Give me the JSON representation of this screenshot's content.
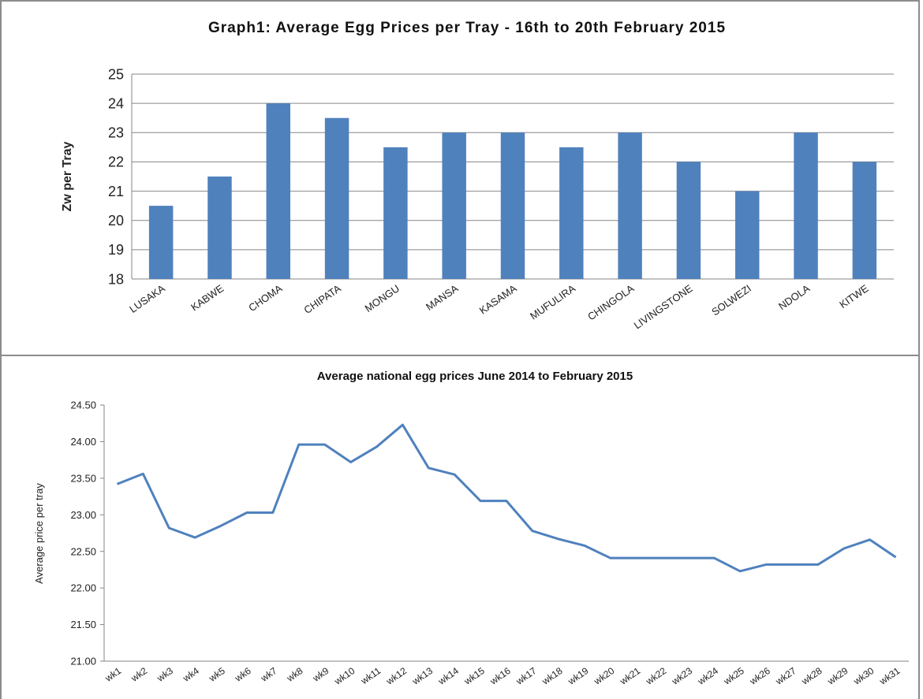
{
  "chart_data": [
    {
      "type": "bar",
      "title": "Graph1: Average Egg Prices per Tray -   16th to 20th February 2015",
      "y_label": "Zw per Tray",
      "categories": [
        "LUSAKA",
        "KABWE",
        "CHOMA",
        "CHIPATA",
        "MONGU",
        "MANSA",
        "KASAMA",
        "MUFULIRA",
        "CHINGOLA",
        "LIVINGSTONE",
        "SOLWEZI",
        "NDOLA",
        "KITWE"
      ],
      "values": [
        20.5,
        21.5,
        24,
        23.5,
        22.5,
        23,
        23,
        22.5,
        23,
        22,
        21,
        23,
        22
      ],
      "color": "#4f81bd",
      "ylim": [
        18,
        25
      ],
      "yticks": [
        18,
        19,
        20,
        21,
        22,
        23,
        24,
        25
      ],
      "grid": true
    },
    {
      "type": "line",
      "title": "Average national  egg prices June 2014 to February 2015",
      "y_label": "Average price per tray",
      "categories": [
        "wk1",
        "wk2",
        "wk3",
        "wk4",
        "wk5",
        "wk6",
        "wk7",
        "wk8",
        "wk9",
        "wk10",
        "wk11",
        "wk12",
        "wk13",
        "wk14",
        "wk15",
        "wk16",
        "wk17",
        "wk18",
        "wk19",
        "wk20",
        "wk21",
        "wk22",
        "wk23",
        "wk24",
        "wk25",
        "wk26",
        "wk27",
        "wk28",
        "wk29",
        "wk30",
        "wk31"
      ],
      "values": [
        23.42,
        23.56,
        22.82,
        22.69,
        22.85,
        23.03,
        23.03,
        23.96,
        23.96,
        23.72,
        23.93,
        24.23,
        23.64,
        23.55,
        23.19,
        23.19,
        22.78,
        22.67,
        22.58,
        22.41,
        22.41,
        22.41,
        22.41,
        22.41,
        22.23,
        22.32,
        22.32,
        22.32,
        22.54,
        22.66,
        22.42
      ],
      "color": "#4f81bd",
      "ylim": [
        21,
        24.5
      ],
      "yticks": [
        {
          "value": 21,
          "label": "21.00"
        },
        {
          "value": 21.5,
          "label": "21.50"
        },
        {
          "value": 22,
          "label": "22.00"
        },
        {
          "value": 22.5,
          "label": "22.50"
        },
        {
          "value": 23,
          "label": "23.00"
        },
        {
          "value": 23.5,
          "label": "23.50"
        },
        {
          "value": 24,
          "label": "24.00"
        },
        {
          "value": 24.5,
          "label": "24.50"
        }
      ],
      "grid": false
    }
  ]
}
